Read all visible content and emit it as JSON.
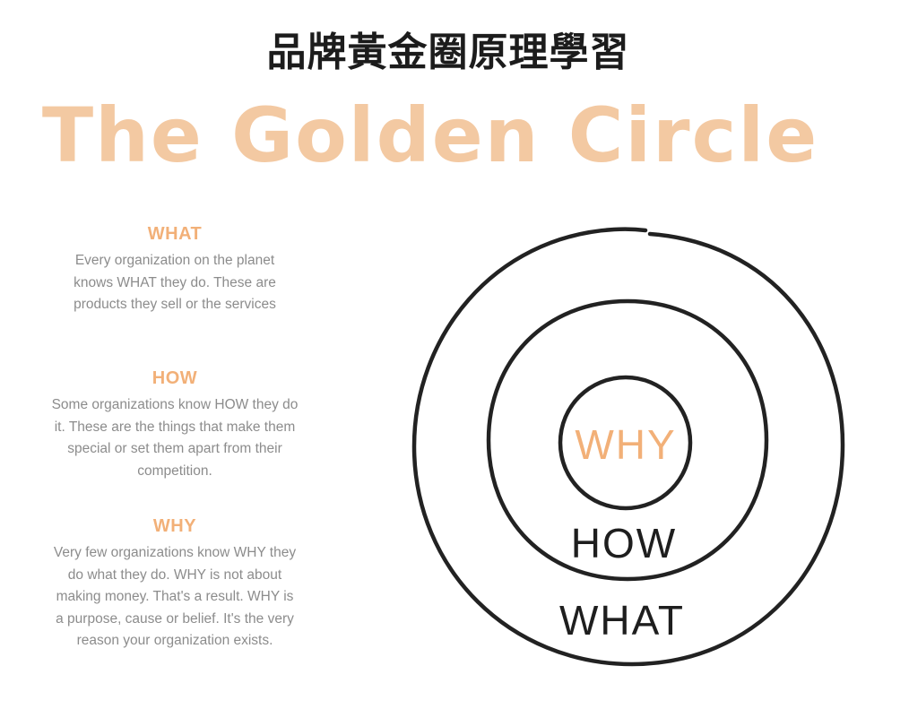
{
  "header": {
    "title": "品牌黃金圈原理學習",
    "banner": "The Golden Circle"
  },
  "sections": {
    "what": {
      "heading": "WHAT",
      "body": "Every organization on the planet knows WHAT they do. These are products they sell or the services"
    },
    "how": {
      "heading": "HOW",
      "body": "Some organizations know HOW they do it. These are the things that make them special or set them apart from their competition."
    },
    "why": {
      "heading": "WHY",
      "body": "Very few organizations know WHY they do what they do. WHY is not about making money. That's a result. WHY is a purpose, cause or belief. It's the very reason your organization exists."
    }
  },
  "diagram": {
    "inner_label": "WHY",
    "middle_label": "HOW",
    "outer_label": "WHAT"
  },
  "colors": {
    "accent": "#f2b078",
    "banner": "#f3c9a2",
    "ink": "#1e1e1e",
    "body_text": "#8c8c8c"
  }
}
